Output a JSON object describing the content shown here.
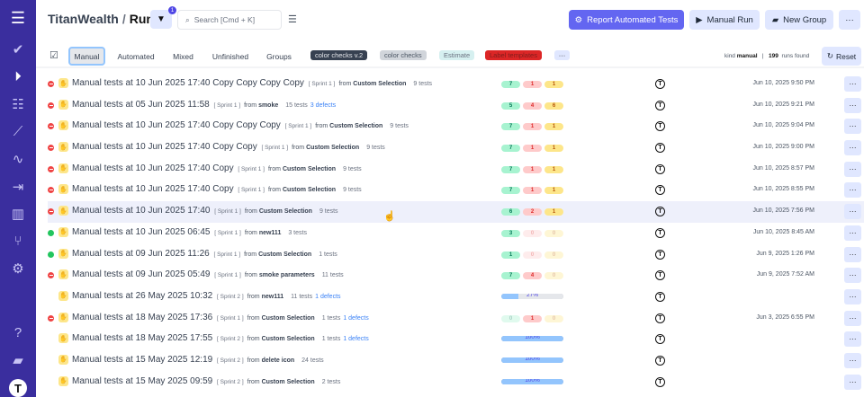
{
  "sidebar": {
    "icons": [
      "menu-icon",
      "check-icon",
      "play-circle-icon",
      "checklist-icon",
      "steps-icon",
      "pulse-icon",
      "import-icon",
      "chart-icon",
      "branch-icon",
      "gear-icon",
      "help-icon",
      "folder-icon",
      "avatar-icon"
    ]
  },
  "header": {
    "project": "TitanWealth",
    "separator": "/",
    "page": "Runs",
    "filter_count": "1",
    "search_placeholder": "Search [Cmd + K]",
    "report_label": "Report Automated Tests",
    "manual_run_label": "Manual Run",
    "new_group_label": "New Group",
    "more_label": "···"
  },
  "toolbar": {
    "tabs": [
      "Manual",
      "Automated",
      "Mixed",
      "Unfinished",
      "Groups"
    ],
    "active_tab": "Manual",
    "labels": [
      {
        "text": "color checks v.2",
        "bg": "#374151",
        "fg": "#e5e7eb"
      },
      {
        "text": "color checks",
        "bg": "#d1d5db",
        "fg": "#4b5563"
      },
      {
        "text": "Estimate",
        "bg": "#d6f0f0",
        "fg": "#6b7280"
      },
      {
        "text": "Label templates",
        "bg": "#dc2626",
        "fg": "#7f1d1d"
      }
    ],
    "labels_more": "···",
    "kind_label": "kind",
    "kind_value": "manual",
    "count": "199",
    "count_suffix": "runs found",
    "reset_label": "Reset"
  },
  "colors": {
    "sidebar": "#3a2e9e",
    "primary": "#6366f1",
    "passed": "#a7f3d0",
    "failed": "#fecaca",
    "skipped": "#fde68a"
  },
  "runs": [
    {
      "status": "fail",
      "title": "Manual tests at 10 Jun 2025 17:40 Copy Copy Copy Copy",
      "sprint": "[ Sprint 1 ]",
      "from_label": "from",
      "from": "Custom Selection",
      "tests": "9 tests",
      "defects": "",
      "counts": [
        "7",
        "1",
        "1"
      ],
      "date": "Jun 10, 2025 9:50 PM"
    },
    {
      "status": "fail",
      "title": "Manual tests at 05 Jun 2025 11:58",
      "sprint": "[ Sprint 1 ]",
      "from_label": "from",
      "from": "smoke",
      "tests": "15 tests",
      "defects": "3 defects",
      "counts": [
        "5",
        "4",
        "6"
      ],
      "date": "Jun 10, 2025 9:21 PM"
    },
    {
      "status": "fail",
      "title": "Manual tests at 10 Jun 2025 17:40 Copy Copy Copy",
      "sprint": "[ Sprint 1 ]",
      "from_label": "from",
      "from": "Custom Selection",
      "tests": "9 tests",
      "defects": "",
      "counts": [
        "7",
        "1",
        "1"
      ],
      "date": "Jun 10, 2025 9:04 PM"
    },
    {
      "status": "fail",
      "title": "Manual tests at 10 Jun 2025 17:40 Copy Copy",
      "sprint": "[ Sprint 1 ]",
      "from_label": "from",
      "from": "Custom Selection",
      "tests": "9 tests",
      "defects": "",
      "counts": [
        "7",
        "1",
        "1"
      ],
      "date": "Jun 10, 2025 9:00 PM"
    },
    {
      "status": "fail",
      "title": "Manual tests at 10 Jun 2025 17:40 Copy",
      "sprint": "[ Sprint 1 ]",
      "from_label": "from",
      "from": "Custom Selection",
      "tests": "9 tests",
      "defects": "",
      "counts": [
        "7",
        "1",
        "1"
      ],
      "date": "Jun 10, 2025 8:57 PM"
    },
    {
      "status": "fail",
      "title": "Manual tests at 10 Jun 2025 17:40 Copy",
      "sprint": "[ Sprint 1 ]",
      "from_label": "from",
      "from": "Custom Selection",
      "tests": "9 tests",
      "defects": "",
      "counts": [
        "7",
        "1",
        "1"
      ],
      "date": "Jun 10, 2025 8:55 PM"
    },
    {
      "status": "fail",
      "title": "Manual tests at 10 Jun 2025 17:40",
      "sprint": "[ Sprint 1 ]",
      "from_label": "from",
      "from": "Custom Selection",
      "tests": "9 tests",
      "defects": "",
      "counts": [
        "6",
        "2",
        "1"
      ],
      "date": "Jun 10, 2025 7:56 PM",
      "highlight": true
    },
    {
      "status": "pass",
      "title": "Manual tests at 10 Jun 2025 06:45",
      "sprint": "[ Sprint 1 ]",
      "from_label": "from",
      "from": "new111",
      "tests": "3 tests",
      "defects": "",
      "counts": [
        "3",
        "0",
        "0"
      ],
      "date": "Jun 10, 2025 8:45 AM"
    },
    {
      "status": "pass",
      "title": "Manual tests at 09 Jun 2025 11:26",
      "sprint": "[ Sprint 1 ]",
      "from_label": "from",
      "from": "Custom Selection",
      "tests": "1 tests",
      "defects": "",
      "counts": [
        "1",
        "0",
        "0"
      ],
      "date": "Jun 9, 2025 1:26 PM"
    },
    {
      "status": "fail",
      "title": "Manual tests at 09 Jun 2025 05:49",
      "sprint": "[ Sprint 1 ]",
      "from_label": "from",
      "from": "smoke parameters",
      "tests": "11 tests",
      "defects": "",
      "counts": [
        "7",
        "4",
        "0"
      ],
      "date": "Jun 9, 2025 7:52 AM"
    },
    {
      "status": "prog",
      "title": "Manual tests at 26 May 2025 10:32",
      "sprint": "[ Sprint 2 ]",
      "from_label": "from",
      "from": "new111",
      "tests": "11 tests",
      "defects": "1 defects",
      "progress": "27%",
      "date": ""
    },
    {
      "status": "fail",
      "title": "Manual tests at 18 May 2025 17:36",
      "sprint": "[ Sprint 1 ]",
      "from_label": "from",
      "from": "Custom Selection",
      "tests": "1 tests",
      "defects": "1 defects",
      "counts": [
        "0",
        "1",
        "0"
      ],
      "date": "Jun 3, 2025 6:55 PM"
    },
    {
      "status": "prog",
      "title": "Manual tests at 18 May 2025 17:55",
      "sprint": "[ Sprint 2 ]",
      "from_label": "from",
      "from": "Custom Selection",
      "tests": "1 tests",
      "defects": "1 defects",
      "progress": "100%",
      "date": ""
    },
    {
      "status": "prog",
      "title": "Manual tests at 15 May 2025 12:19",
      "sprint": "[ Sprint 2 ]",
      "from_label": "from",
      "from": "delete icon",
      "tests": "24 tests",
      "defects": "",
      "progress": "100%",
      "date": ""
    },
    {
      "status": "prog",
      "title": "Manual tests at 15 May 2025 09:59",
      "sprint": "[ Sprint 2 ]",
      "from_label": "from",
      "from": "Custom Selection",
      "tests": "2 tests",
      "defects": "",
      "progress": "100%",
      "date": ""
    }
  ]
}
